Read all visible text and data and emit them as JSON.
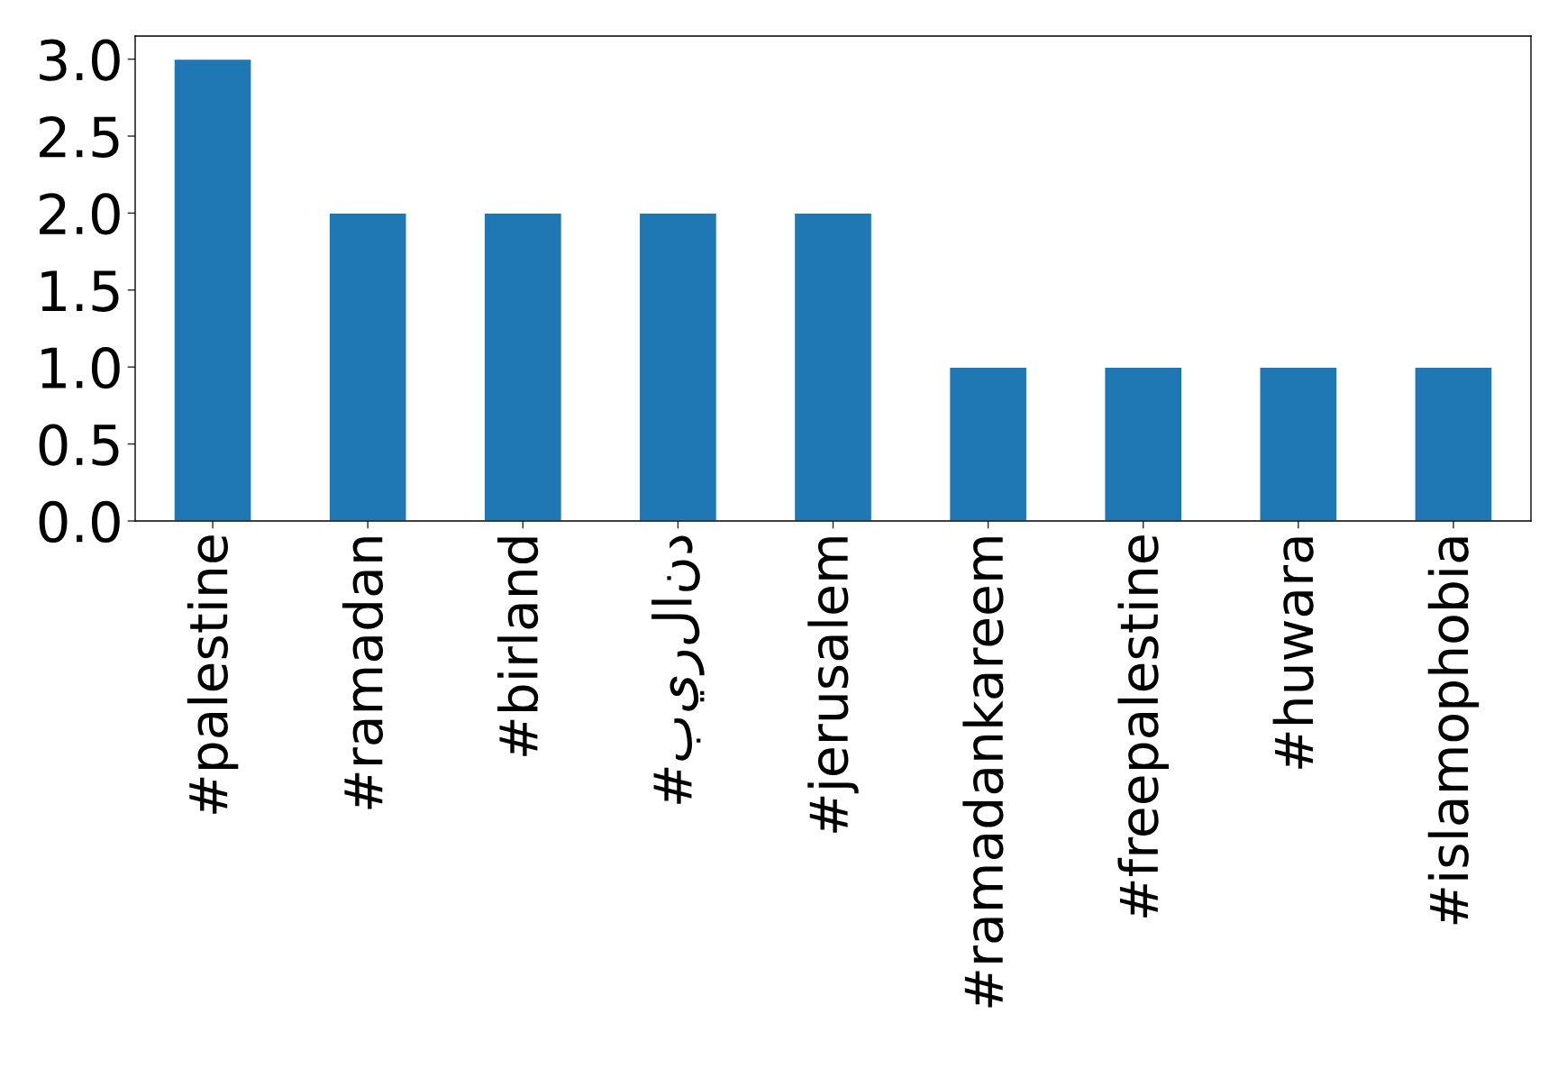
{
  "chart_data": {
    "type": "bar",
    "categories": [
      "#palestine",
      "#ramadan",
      "#birland",
      "#بيرلاند",
      "#jerusalem",
      "#ramadankareem",
      "#freepalestine",
      "#huwara",
      "#islamophobia"
    ],
    "values": [
      3,
      2,
      2,
      2,
      2,
      1,
      1,
      1,
      1
    ],
    "color": "#1f77b4",
    "ylim": [
      0,
      3.15
    ],
    "yticks": [
      {
        "value": 0,
        "label": "0.0"
      },
      0.5,
      {
        "value": 1,
        "label": "1.0"
      },
      1.5,
      {
        "value": 2,
        "label": "2.0"
      },
      2.5,
      {
        "value": 3,
        "label": "3.0"
      }
    ],
    "grid": false,
    "legend": false
  }
}
